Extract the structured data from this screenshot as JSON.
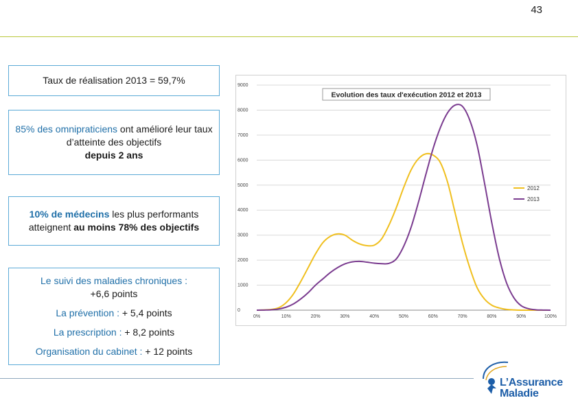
{
  "page": {
    "number": "43"
  },
  "boxes": {
    "box1": {
      "text": "Taux de réalisation 2013 = 59,7%"
    },
    "box2": {
      "line1_bold": "85% des omnipraticiens",
      "line1_rest": " ont amélioré leur taux d’atteinte des objectifs",
      "line2_bold": "depuis 2 ans"
    },
    "box3": {
      "part1_bold": "10% de médecins",
      "part2": " les plus performants atteignent ",
      "part3_bold": "au moins 78% des objectifs"
    },
    "box4": {
      "item1_label": "Le suivi des maladies chroniques :",
      "item1_value": "+6,6 points",
      "item2_label": "La prévention :",
      "item2_value": " + 5,4 points",
      "item3_label": "La prescription :",
      "item3_value": " + 8,2 points",
      "item4_label": "Organisation du cabinet :",
      "item4_value": " + 12 points"
    }
  },
  "logo": {
    "line1": "L’Assurance",
    "line2": "Maladie"
  },
  "chart_data": {
    "type": "line",
    "title": "Evolution des taux d'exécution 2012 et 2013",
    "xlabel": "",
    "ylabel": "",
    "x_ticks": [
      "0%",
      "10%",
      "20%",
      "30%",
      "40%",
      "50%",
      "60%",
      "70%",
      "80%",
      "90%",
      "100%"
    ],
    "y_ticks": [
      0,
      1000,
      2000,
      3000,
      4000,
      5000,
      6000,
      7000,
      8000,
      9000
    ],
    "ylim": [
      0,
      9000
    ],
    "xlim": [
      0,
      100
    ],
    "grid": true,
    "legend_position": "right",
    "x": [
      0,
      2.5,
      5,
      7.5,
      10,
      12.5,
      15,
      17.5,
      20,
      22.5,
      25,
      27.5,
      30,
      32.5,
      35,
      37.5,
      40,
      42.5,
      45,
      47.5,
      50,
      52.5,
      55,
      57.5,
      60,
      62.5,
      65,
      67.5,
      70,
      72.5,
      75,
      77.5,
      80,
      82.5,
      85,
      87.5,
      90,
      92.5,
      95,
      97.5,
      100
    ],
    "series": [
      {
        "name": "2012",
        "color": "#f0bf1e",
        "values": [
          0,
          10,
          30,
          100,
          300,
          650,
          1150,
          1700,
          2250,
          2700,
          2950,
          3050,
          3000,
          2800,
          2650,
          2580,
          2600,
          2850,
          3400,
          4100,
          4900,
          5600,
          6050,
          6250,
          6200,
          5900,
          5100,
          3900,
          2700,
          1700,
          900,
          450,
          200,
          90,
          30,
          10,
          0,
          0,
          0,
          0,
          0
        ]
      },
      {
        "name": "2013",
        "color": "#7a3b8f",
        "values": [
          0,
          5,
          15,
          50,
          120,
          250,
          450,
          700,
          1000,
          1250,
          1500,
          1700,
          1850,
          1930,
          1950,
          1920,
          1880,
          1860,
          1870,
          2050,
          2550,
          3300,
          4300,
          5400,
          6450,
          7300,
          7900,
          8200,
          8150,
          7600,
          6600,
          5100,
          3500,
          2100,
          1100,
          500,
          180,
          60,
          15,
          5,
          0
        ]
      }
    ]
  }
}
